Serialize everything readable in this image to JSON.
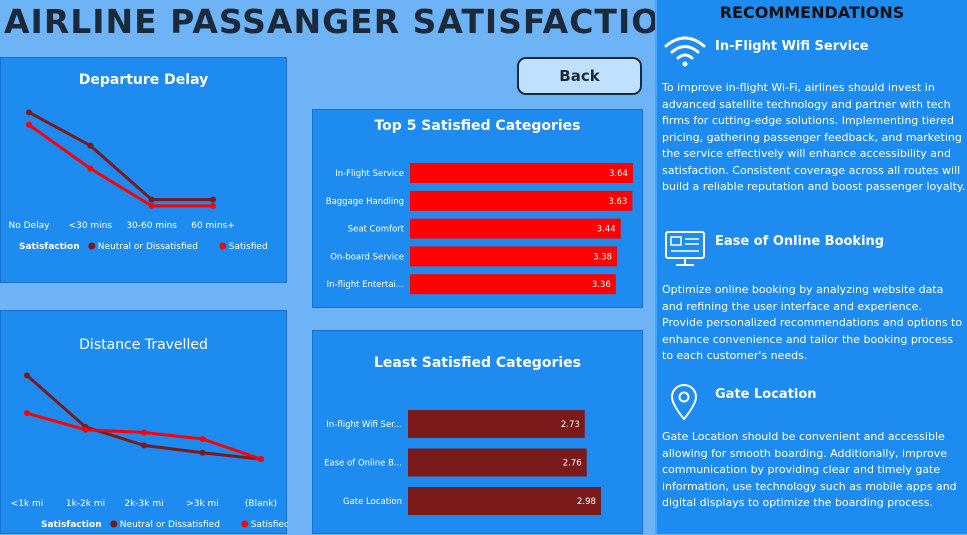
{
  "header": {
    "title": "AIRLINE PASSANGER SATISFACTION"
  },
  "back_button": {
    "label": "Back"
  },
  "chart_data": [
    {
      "type": "line",
      "title": "Departure Delay",
      "categories": [
        "No Delay",
        "<30 mins",
        "30-60 mins",
        "60 mins+"
      ],
      "legend_title": "Satisfaction",
      "legend_position": "bottom",
      "ylim": [
        0,
        1
      ],
      "series": [
        {
          "name": "Neutral or Dissatisfied",
          "color": "#7a1a1a",
          "values": [
            0.92,
            0.6,
            0.08,
            0.08
          ]
        },
        {
          "name": "Satisfied",
          "color": "#ff0000",
          "values": [
            0.8,
            0.38,
            0.02,
            0.02
          ]
        }
      ]
    },
    {
      "type": "line",
      "title": "Distance Travelled",
      "categories": [
        "<1k mi",
        "1k-2k mi",
        "2k-3k mi",
        ">3k mi",
        "(Blank)"
      ],
      "legend_title": "Satisfaction",
      "legend_position": "bottom",
      "ylim": [
        0,
        1
      ],
      "series": [
        {
          "name": "Neutral or Dissatisfied",
          "color": "#7a1a1a",
          "values": [
            0.93,
            0.37,
            0.17,
            0.09,
            0.02
          ]
        },
        {
          "name": "Satisfied",
          "color": "#ff0000",
          "values": [
            0.52,
            0.34,
            0.31,
            0.24,
            0.02
          ]
        }
      ]
    },
    {
      "type": "bar",
      "orientation": "horizontal",
      "title": "Top 5 Satisfied Categories",
      "color": "#ff0000",
      "xlim": [
        0,
        4
      ],
      "categories": [
        "In-Flight Service",
        "Baggage Handling",
        "Seat Comfort",
        "On-board Service",
        "In-flight Entertai..."
      ],
      "values": [
        3.64,
        3.63,
        3.44,
        3.38,
        3.36
      ],
      "labels": [
        "3.64",
        "3.63",
        "3.44",
        "3.38",
        "3.36"
      ]
    },
    {
      "type": "bar",
      "orientation": "horizontal",
      "title": "Least Satisfied Categories",
      "color": "#7a1a1a",
      "xlim": [
        0,
        4
      ],
      "categories": [
        "In-flight Wifi Ser...",
        "Ease of Online B...",
        "Gate Location"
      ],
      "values": [
        2.73,
        2.76,
        2.98
      ],
      "labels": [
        "2.73",
        "2.76",
        "2.98"
      ]
    }
  ],
  "recommendations": {
    "heading": "RECOMMENDATIONS",
    "items": [
      {
        "icon": "wifi-icon",
        "title": "In-Flight Wifi Service",
        "text": "To improve in-flight Wi-Fi, airlines should invest in advanced satellite technology and partner with tech firms for cutting-edge solutions. Implementing tiered pricing, gathering passenger feedback, and marketing the service effectively will enhance accessibility and satisfaction. Consistent coverage across all routes will build a reliable reputation and boost passenger loyalty."
      },
      {
        "icon": "online-booking-icon",
        "title": "Ease of Online Booking",
        "text": "Optimize online booking by analyzing website data and refining the user interface and experience. Provide personalized recommendations and options to enhance convenience and tailor the booking process to each customer's needs."
      },
      {
        "icon": "location-pin-icon",
        "title": "Gate Location",
        "text": "Gate Location should be convenient and accessible allowing for smooth boarding. Additionally, improve communication by providing clear and timely gate information, use technology such as mobile apps and digital displays to optimize the boarding process."
      }
    ]
  }
}
